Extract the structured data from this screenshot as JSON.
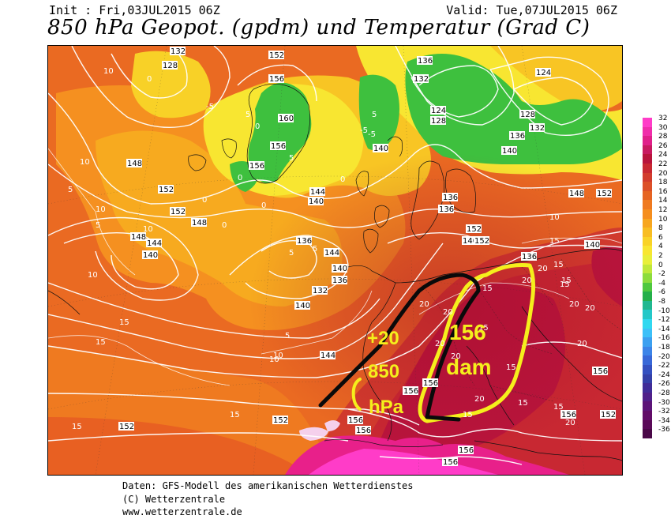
{
  "header": {
    "init": "Init : Fri,03JUL2015 06Z",
    "valid": "Valid: Tue,07JUL2015 06Z",
    "title": "850 hPa Geopot. (gpdm) und Temperatur (Grad C)"
  },
  "footer": {
    "line1": "Daten: GFS-Modell des amerikanischen Wetterdienstes",
    "line2": "(C) Wetterzentrale",
    "line3": "www.wetterzentrale.de"
  },
  "annotations": {
    "temp_value": "+20",
    "level_value": "850",
    "level_unit": "hPa",
    "height_value": "156",
    "height_unit": "dam"
  },
  "color_scale": {
    "labels": [
      "32",
      "30",
      "28",
      "26",
      "24",
      "22",
      "20",
      "18",
      "16",
      "14",
      "12",
      "10",
      "8",
      "6",
      "4",
      "2",
      "0",
      "-2",
      "-4",
      "-6",
      "-8",
      "-10",
      "-12",
      "-14",
      "-16",
      "-18",
      "-20",
      "-22",
      "-24",
      "-26",
      "-28",
      "-30",
      "-32",
      "-34",
      "-36"
    ],
    "colors": [
      "#ff3cc8",
      "#f02daa",
      "#e0208a",
      "#c81a60",
      "#b8143c",
      "#c82832",
      "#d23c2d",
      "#dc5028",
      "#e66423",
      "#ef7a20",
      "#f58e1e",
      "#f7a61f",
      "#f8bd22",
      "#f9d327",
      "#f8e631",
      "#e8ef3a",
      "#bfe83a",
      "#8cdc3c",
      "#4ec83e",
      "#24b04a",
      "#20b890",
      "#24c8c8",
      "#30d8f0",
      "#3cc0f8",
      "#3ca0f0",
      "#3c84e8",
      "#3868d8",
      "#3450c0",
      "#3440a8",
      "#402c98",
      "#50208a",
      "#5c1478",
      "#620c68",
      "#5a0a58",
      "#4a0848"
    ]
  },
  "geopotential_labels": [
    "132",
    "128",
    "152",
    "156",
    "136",
    "132",
    "124",
    "128",
    "124",
    "128",
    "132",
    "136",
    "160",
    "156",
    "156",
    "140",
    "140",
    "136",
    "144",
    "140",
    "148",
    "152",
    "152",
    "148",
    "148",
    "144",
    "140",
    "136",
    "144",
    "140",
    "136",
    "132",
    "140",
    "144",
    "148",
    "152",
    "140",
    "136",
    "140",
    "136",
    "152",
    "152",
    "156",
    "156",
    "156",
    "156",
    "152",
    "152",
    "156",
    "156",
    "156",
    "156",
    "152"
  ],
  "temperature_labels": [
    "10",
    "0",
    "-5",
    "5",
    "0",
    "5",
    "0",
    "0",
    "0",
    "-5",
    "5",
    "0",
    "-5",
    "5",
    "10",
    "10",
    "15",
    "15",
    "10",
    "5",
    "5",
    "0",
    "10",
    "5",
    "5",
    "10",
    "10",
    "15",
    "15",
    "15",
    "20",
    "20",
    "15",
    "15",
    "20",
    "20",
    "20",
    "20",
    "20",
    "20",
    "20",
    "15",
    "15",
    "15",
    "20",
    "15",
    "15",
    "10",
    "15",
    "15",
    "20"
  ]
}
